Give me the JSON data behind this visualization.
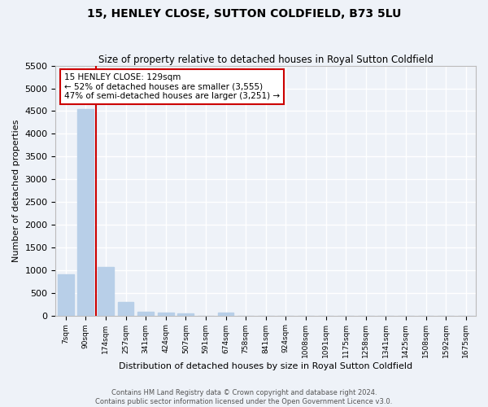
{
  "title": "15, HENLEY CLOSE, SUTTON COLDFIELD, B73 5LU",
  "subtitle": "Size of property relative to detached houses in Royal Sutton Coldfield",
  "xlabel": "Distribution of detached houses by size in Royal Sutton Coldfield",
  "ylabel": "Number of detached properties",
  "categories": [
    "7sqm",
    "90sqm",
    "174sqm",
    "257sqm",
    "341sqm",
    "424sqm",
    "507sqm",
    "591sqm",
    "674sqm",
    "758sqm",
    "841sqm",
    "924sqm",
    "1008sqm",
    "1091sqm",
    "1175sqm",
    "1258sqm",
    "1341sqm",
    "1425sqm",
    "1508sqm",
    "1592sqm",
    "1675sqm"
  ],
  "values": [
    900,
    4550,
    1060,
    295,
    90,
    70,
    55,
    0,
    60,
    0,
    0,
    0,
    0,
    0,
    0,
    0,
    0,
    0,
    0,
    0,
    0
  ],
  "bar_color": "#b8cfe8",
  "vline_color": "#cc0000",
  "vline_index": 1.5,
  "annotation_text": "15 HENLEY CLOSE: 129sqm\n← 52% of detached houses are smaller (3,555)\n47% of semi-detached houses are larger (3,251) →",
  "annotation_box_color": "#cc0000",
  "background_color": "#eef2f8",
  "grid_color": "#ffffff",
  "ylim": [
    0,
    5500
  ],
  "yticks": [
    0,
    500,
    1000,
    1500,
    2000,
    2500,
    3000,
    3500,
    4000,
    4500,
    5000,
    5500
  ],
  "footer_line1": "Contains HM Land Registry data © Crown copyright and database right 2024.",
  "footer_line2": "Contains public sector information licensed under the Open Government Licence v3.0."
}
